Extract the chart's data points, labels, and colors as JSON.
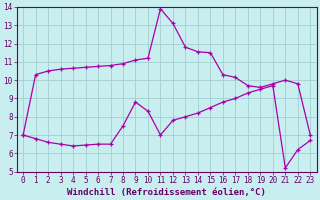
{
  "xlabel": "Windchill (Refroidissement éolien,°C)",
  "bg_color": "#c8eef0",
  "grid_color": "#a0d0d0",
  "line_color": "#aa00aa",
  "xlim": [
    -0.5,
    23.5
  ],
  "ylim": [
    5,
    14
  ],
  "yticks": [
    5,
    6,
    7,
    8,
    9,
    10,
    11,
    12,
    13,
    14
  ],
  "xticks": [
    0,
    1,
    2,
    3,
    4,
    5,
    6,
    7,
    8,
    9,
    10,
    11,
    12,
    13,
    14,
    15,
    16,
    17,
    18,
    19,
    20,
    21,
    22,
    23
  ],
  "line1_x": [
    0,
    1,
    2,
    3,
    4,
    5,
    6,
    7,
    8,
    9,
    10,
    11,
    12,
    13,
    14,
    15,
    16,
    17,
    18,
    19,
    20,
    21,
    22,
    23
  ],
  "line1_y": [
    7.0,
    10.3,
    10.5,
    10.6,
    10.65,
    10.7,
    10.75,
    10.8,
    10.9,
    11.1,
    11.2,
    13.9,
    13.1,
    11.8,
    11.55,
    11.5,
    10.3,
    10.15,
    9.7,
    9.6,
    9.8,
    10.0,
    9.8,
    7.0
  ],
  "line2_x": [
    0,
    1,
    2,
    3,
    4,
    5,
    6,
    7,
    8,
    9,
    10,
    11,
    12,
    13,
    14,
    15,
    16,
    17,
    18,
    19,
    20,
    21,
    22,
    23
  ],
  "line2_y": [
    7.0,
    6.8,
    6.6,
    6.5,
    6.4,
    6.45,
    6.5,
    6.5,
    7.5,
    8.8,
    8.3,
    7.0,
    7.8,
    8.0,
    8.2,
    8.5,
    8.8,
    9.0,
    9.3,
    9.5,
    9.7,
    5.2,
    6.2,
    6.7
  ],
  "tick_fontsize": 5.5,
  "xlabel_fontsize": 6.5,
  "spine_color": "#660066",
  "tick_color": "#660066"
}
